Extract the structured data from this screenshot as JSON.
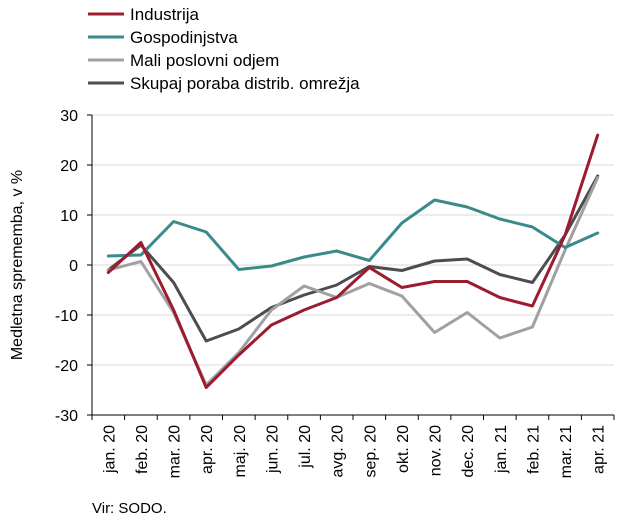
{
  "chart_data": {
    "type": "line",
    "title": "",
    "xlabel": "",
    "ylabel": "Medletna sprememba, v %",
    "ylim": [
      -30,
      30
    ],
    "yticks": [
      -30,
      -20,
      -10,
      0,
      10,
      20,
      30
    ],
    "grid": "horizontal",
    "legend_position": "top-left",
    "categories": [
      "jan. 20",
      "feb. 20",
      "mar. 20",
      "apr. 20",
      "maj. 20",
      "jun. 20",
      "jul. 20",
      "avg. 20",
      "sep. 20",
      "okt. 20",
      "nov. 20",
      "dec. 20",
      "jan. 21",
      "feb. 21",
      "mar. 21",
      "apr. 21"
    ],
    "series": [
      {
        "name": "Industrija",
        "color": "#9b1c2e",
        "values": [
          -1.5,
          4.5,
          -9,
          -24.5,
          -18,
          -12,
          -9,
          -6.5,
          -0.5,
          -4.5,
          -3.3,
          -3.3,
          -6.5,
          -8.2,
          6,
          26
        ]
      },
      {
        "name": "Gospodinjstva",
        "color": "#3b8a8a",
        "values": [
          1.8,
          2,
          8.7,
          6.6,
          -0.9,
          -0.2,
          1.6,
          2.8,
          0.9,
          8.4,
          13,
          11.6,
          9.2,
          7.6,
          3.5,
          6.4
        ]
      },
      {
        "name": "Mali poslovni odjem",
        "color": "#a0a0a0",
        "values": [
          -1,
          0.7,
          -9.5,
          -24,
          -17.5,
          -9,
          -4.2,
          -6.5,
          -3.7,
          -6.2,
          -13.5,
          -9.5,
          -14.6,
          -12.4,
          3,
          17.5
        ]
      },
      {
        "name": "Skupaj poraba distrib. omrežja",
        "color": "#4d4d4d",
        "values": [
          -1,
          4,
          -3.5,
          -15.2,
          -12.8,
          -8.5,
          -6,
          -4,
          -0.3,
          -1.1,
          0.8,
          1.2,
          -1.9,
          -3.5,
          6,
          17.8
        ]
      }
    ]
  },
  "source_note": "Vir: SODO."
}
